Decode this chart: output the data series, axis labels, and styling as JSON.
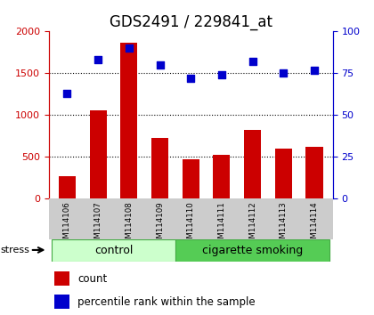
{
  "title": "GDS2491 / 229841_at",
  "samples": [
    "GSM114106",
    "GSM114107",
    "GSM114108",
    "GSM114109",
    "GSM114110",
    "GSM114111",
    "GSM114112",
    "GSM114113",
    "GSM114114"
  ],
  "counts": [
    270,
    1060,
    1870,
    730,
    470,
    520,
    820,
    600,
    620
  ],
  "percentile_ranks": [
    63,
    83,
    90,
    80,
    72,
    74,
    82,
    75,
    77
  ],
  "bar_color": "#cc0000",
  "dot_color": "#0000cc",
  "ylim_left": [
    0,
    2000
  ],
  "ylim_right": [
    0,
    100
  ],
  "yticks_left": [
    0,
    500,
    1000,
    1500,
    2000
  ],
  "yticks_right": [
    0,
    25,
    50,
    75,
    100
  ],
  "ctrl_n": 4,
  "smoke_n": 5,
  "control_label": "control",
  "smoking_label": "cigarette smoking",
  "stress_label": "stress",
  "legend_count": "count",
  "legend_pct": "percentile rank within the sample",
  "control_color": "#ccffcc",
  "smoking_color": "#55cc55",
  "gray_bg": "#cccccc",
  "title_fontsize": 12,
  "tick_fontsize": 8,
  "label_fontsize": 8.5,
  "group_fontsize": 9
}
